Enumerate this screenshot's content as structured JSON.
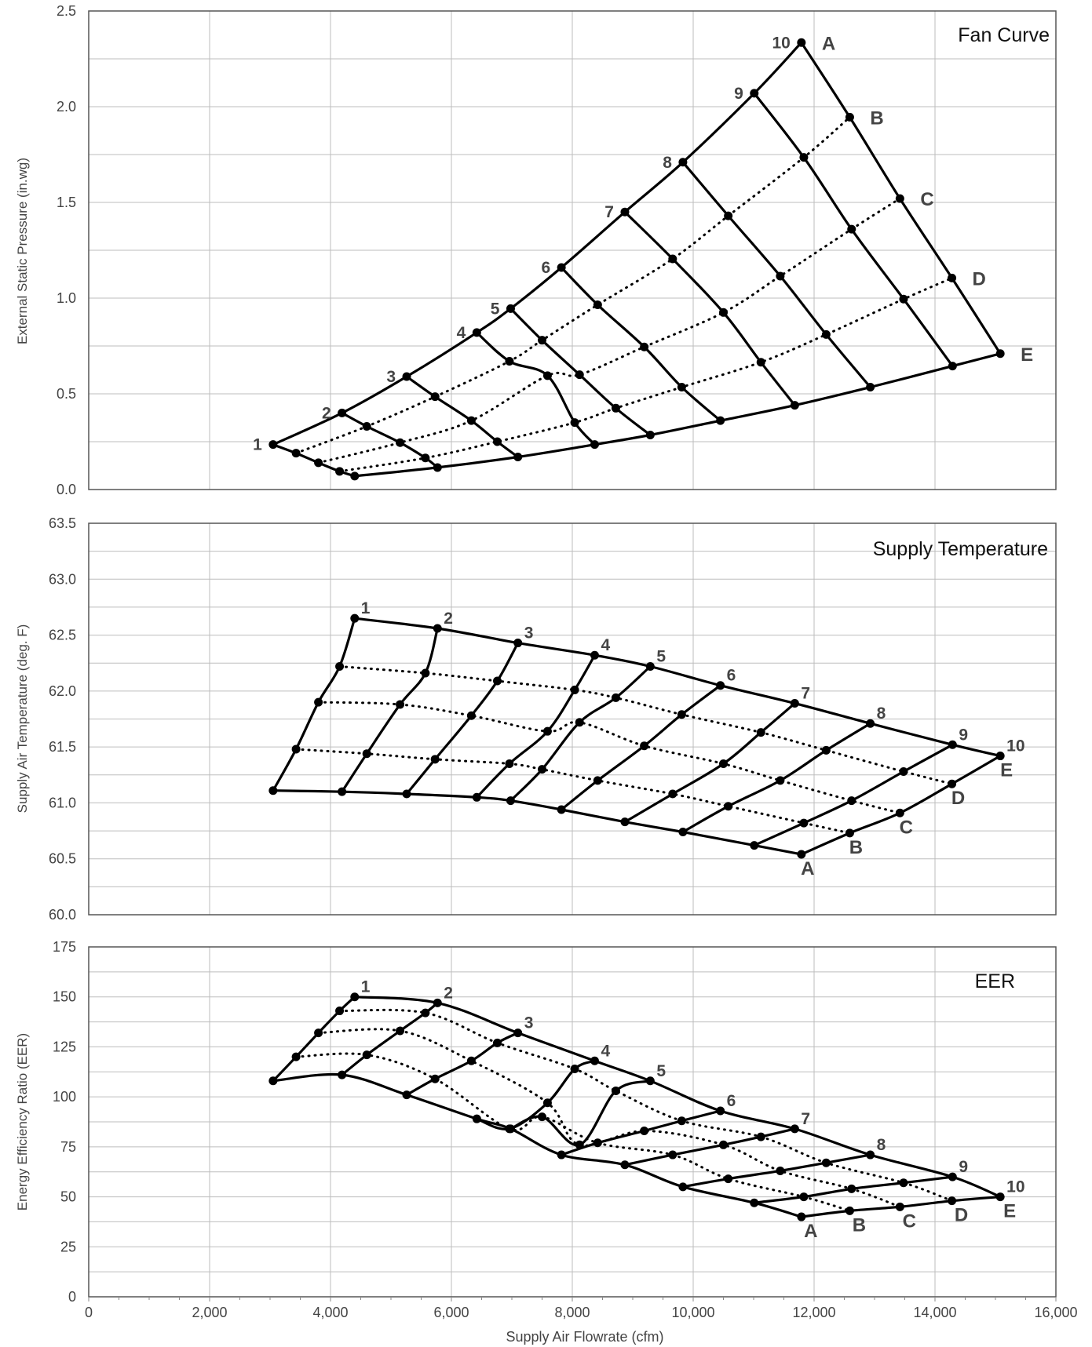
{
  "chart_data": [
    {
      "type": "line",
      "title": "Fan Curve",
      "xlabel": "Supply Air Flowrate (cfm)",
      "ylabel": "External Static Pressure (in.wg)",
      "xlim": [
        0,
        16000
      ],
      "ylim": [
        0.0,
        2.5
      ],
      "xticks": [
        "0",
        "2,000",
        "4,000",
        "6,000",
        "8,000",
        "10,000",
        "12,000",
        "14,000",
        "16,000"
      ],
      "yticks": [
        "0.0",
        "0.5",
        "1.0",
        "1.5",
        "2.0",
        "2.5"
      ],
      "grid": true,
      "speed_labels": [
        "1",
        "2",
        "3",
        "4",
        "5",
        "6",
        "7",
        "8",
        "9",
        "10"
      ],
      "damper_labels": [
        "A",
        "B",
        "C",
        "D",
        "E"
      ],
      "series": [
        {
          "name": "1",
          "points": [
            [
              3050,
              0.235
            ],
            [
              3430,
              0.19
            ],
            [
              3800,
              0.14
            ],
            [
              4150,
              0.095
            ],
            [
              4400,
              0.07
            ]
          ]
        },
        {
          "name": "2",
          "points": [
            [
              4190,
              0.4
            ],
            [
              4600,
              0.33
            ],
            [
              5150,
              0.245
            ],
            [
              5570,
              0.165
            ],
            [
              5770,
              0.115
            ]
          ]
        },
        {
          "name": "3",
          "points": [
            [
              5260,
              0.59
            ],
            [
              5730,
              0.485
            ],
            [
              6330,
              0.36
            ],
            [
              6760,
              0.25
            ],
            [
              7100,
              0.17
            ]
          ]
        },
        {
          "name": "4",
          "points": [
            [
              6420,
              0.82
            ],
            [
              6960,
              0.67
            ],
            [
              7590,
              0.595
            ],
            [
              8040,
              0.35
            ],
            [
              8370,
              0.235
            ]
          ]
        },
        {
          "name": "5",
          "points": [
            [
              6980,
              0.945
            ],
            [
              7500,
              0.78
            ],
            [
              8120,
              0.6
            ],
            [
              8720,
              0.425
            ],
            [
              9290,
              0.285
            ]
          ]
        },
        {
          "name": "6",
          "points": [
            [
              7820,
              1.16
            ],
            [
              8420,
              0.965
            ],
            [
              9190,
              0.745
            ],
            [
              9810,
              0.535
            ],
            [
              10450,
              0.36
            ]
          ]
        },
        {
          "name": "7",
          "points": [
            [
              8870,
              1.45
            ],
            [
              9660,
              1.205
            ],
            [
              10500,
              0.925
            ],
            [
              11120,
              0.665
            ],
            [
              11680,
              0.44
            ]
          ]
        },
        {
          "name": "8",
          "points": [
            [
              9830,
              1.71
            ],
            [
              10580,
              1.43
            ],
            [
              11440,
              1.115
            ],
            [
              12200,
              0.81
            ],
            [
              12930,
              0.535
            ]
          ]
        },
        {
          "name": "9",
          "points": [
            [
              11010,
              2.07
            ],
            [
              11830,
              1.735
            ],
            [
              12620,
              1.36
            ],
            [
              13480,
              0.995
            ],
            [
              14290,
              0.645
            ]
          ]
        },
        {
          "name": "10",
          "points": [
            [
              11790,
              2.335
            ],
            [
              12590,
              1.945
            ],
            [
              13420,
              1.52
            ],
            [
              14280,
              1.105
            ],
            [
              15080,
              0.71
            ]
          ]
        }
      ]
    },
    {
      "type": "line",
      "title": "Supply Temperature",
      "xlabel": "Supply Air Flowrate (cfm)",
      "ylabel": "Supply Air Temperature (deg. F)",
      "xlim": [
        0,
        16000
      ],
      "ylim": [
        60.0,
        63.5
      ],
      "xticks": [
        "0",
        "2,000",
        "4,000",
        "6,000",
        "8,000",
        "10,000",
        "12,000",
        "14,000",
        "16,000"
      ],
      "yticks": [
        "60.0",
        "60.5",
        "61.0",
        "61.5",
        "62.0",
        "62.5",
        "63.0",
        "63.5"
      ],
      "grid": true,
      "speed_labels": [
        "1",
        "2",
        "3",
        "4",
        "5",
        "6",
        "7",
        "8",
        "9",
        "10"
      ],
      "damper_labels": [
        "A",
        "B",
        "C",
        "D",
        "E"
      ],
      "series": [
        {
          "name": "1",
          "points": [
            [
              4400,
              62.65
            ],
            [
              4150,
              62.22
            ],
            [
              3800,
              61.9
            ],
            [
              3430,
              61.48
            ],
            [
              3050,
              61.11
            ]
          ]
        },
        {
          "name": "2",
          "points": [
            [
              5770,
              62.56
            ],
            [
              5570,
              62.16
            ],
            [
              5150,
              61.88
            ],
            [
              4600,
              61.44
            ],
            [
              4190,
              61.1
            ]
          ]
        },
        {
          "name": "3",
          "points": [
            [
              7100,
              62.43
            ],
            [
              6760,
              62.09
            ],
            [
              6330,
              61.78
            ],
            [
              5730,
              61.39
            ],
            [
              5260,
              61.08
            ]
          ]
        },
        {
          "name": "4",
          "points": [
            [
              8370,
              62.32
            ],
            [
              8040,
              62.01
            ],
            [
              7590,
              61.64
            ],
            [
              6960,
              61.35
            ],
            [
              6420,
              61.05
            ]
          ]
        },
        {
          "name": "5",
          "points": [
            [
              9290,
              62.22
            ],
            [
              8720,
              61.94
            ],
            [
              8120,
              61.72
            ],
            [
              7500,
              61.3
            ],
            [
              6980,
              61.02
            ]
          ]
        },
        {
          "name": "6",
          "points": [
            [
              10450,
              62.05
            ],
            [
              9810,
              61.79
            ],
            [
              9190,
              61.51
            ],
            [
              8420,
              61.2
            ],
            [
              7820,
              60.94
            ]
          ]
        },
        {
          "name": "7",
          "points": [
            [
              11680,
              61.89
            ],
            [
              11120,
              61.63
            ],
            [
              10500,
              61.35
            ],
            [
              9660,
              61.08
            ],
            [
              8870,
              60.83
            ]
          ]
        },
        {
          "name": "8",
          "points": [
            [
              12930,
              61.71
            ],
            [
              12200,
              61.47
            ],
            [
              11440,
              61.2
            ],
            [
              10580,
              60.97
            ],
            [
              9830,
              60.74
            ]
          ]
        },
        {
          "name": "9",
          "points": [
            [
              14290,
              61.52
            ],
            [
              13480,
              61.28
            ],
            [
              12620,
              61.02
            ],
            [
              11830,
              60.82
            ],
            [
              11010,
              60.62
            ]
          ]
        },
        {
          "name": "10",
          "points": [
            [
              15080,
              61.42
            ],
            [
              14280,
              61.17
            ],
            [
              13420,
              60.91
            ],
            [
              12590,
              60.73
            ],
            [
              11790,
              60.54
            ]
          ]
        }
      ]
    },
    {
      "type": "line",
      "title": "EER",
      "xlabel": "Supply Air Flowrate (cfm)",
      "ylabel": "Energy Efficiency Ratio (EER)",
      "xlim": [
        0,
        16000
      ],
      "ylim": [
        0,
        175
      ],
      "xticks": [
        "0",
        "2,000",
        "4,000",
        "6,000",
        "8,000",
        "10,000",
        "12,000",
        "14,000",
        "16,000"
      ],
      "yticks": [
        "0",
        "25",
        "50",
        "75",
        "100",
        "125",
        "150",
        "175"
      ],
      "grid": true,
      "speed_labels": [
        "1",
        "2",
        "3",
        "4",
        "5",
        "6",
        "7",
        "8",
        "9",
        "10"
      ],
      "damper_labels": [
        "A",
        "B",
        "C",
        "D",
        "E"
      ],
      "series": [
        {
          "name": "1",
          "points": [
            [
              4400,
              150
            ],
            [
              4150,
              143
            ],
            [
              3800,
              132
            ],
            [
              3430,
              120
            ],
            [
              3050,
              108
            ]
          ]
        },
        {
          "name": "2",
          "points": [
            [
              5770,
              147
            ],
            [
              5570,
              142
            ],
            [
              5150,
              133
            ],
            [
              4600,
              121
            ],
            [
              4190,
              111
            ]
          ]
        },
        {
          "name": "3",
          "points": [
            [
              7100,
              132
            ],
            [
              6760,
              127
            ],
            [
              6330,
              118
            ],
            [
              5730,
              109
            ],
            [
              5260,
              101
            ]
          ]
        },
        {
          "name": "4",
          "points": [
            [
              8370,
              118
            ],
            [
              8040,
              114
            ],
            [
              7590,
              97
            ],
            [
              6960,
              84
            ],
            [
              6420,
              89
            ]
          ]
        },
        {
          "name": "5",
          "points": [
            [
              9290,
              108
            ],
            [
              8720,
              103
            ],
            [
              8120,
              76
            ],
            [
              7500,
              90
            ],
            [
              6980,
              84
            ]
          ]
        },
        {
          "name": "6",
          "points": [
            [
              10450,
              93
            ],
            [
              9810,
              88
            ],
            [
              9190,
              83
            ],
            [
              8420,
              77
            ],
            [
              7820,
              71
            ]
          ]
        },
        {
          "name": "7",
          "points": [
            [
              11680,
              84
            ],
            [
              11120,
              80
            ],
            [
              10500,
              76
            ],
            [
              9660,
              71
            ],
            [
              8870,
              66
            ]
          ]
        },
        {
          "name": "8",
          "points": [
            [
              12930,
              71
            ],
            [
              12200,
              67
            ],
            [
              11440,
              63
            ],
            [
              10580,
              59
            ],
            [
              9830,
              55
            ]
          ]
        },
        {
          "name": "9",
          "points": [
            [
              14290,
              60
            ],
            [
              13480,
              57
            ],
            [
              12620,
              54
            ],
            [
              11830,
              50
            ],
            [
              11010,
              47
            ]
          ]
        },
        {
          "name": "10",
          "points": [
            [
              15080,
              50
            ],
            [
              14280,
              48
            ],
            [
              13420,
              45
            ],
            [
              12590,
              43
            ],
            [
              11790,
              40
            ]
          ]
        }
      ]
    }
  ]
}
